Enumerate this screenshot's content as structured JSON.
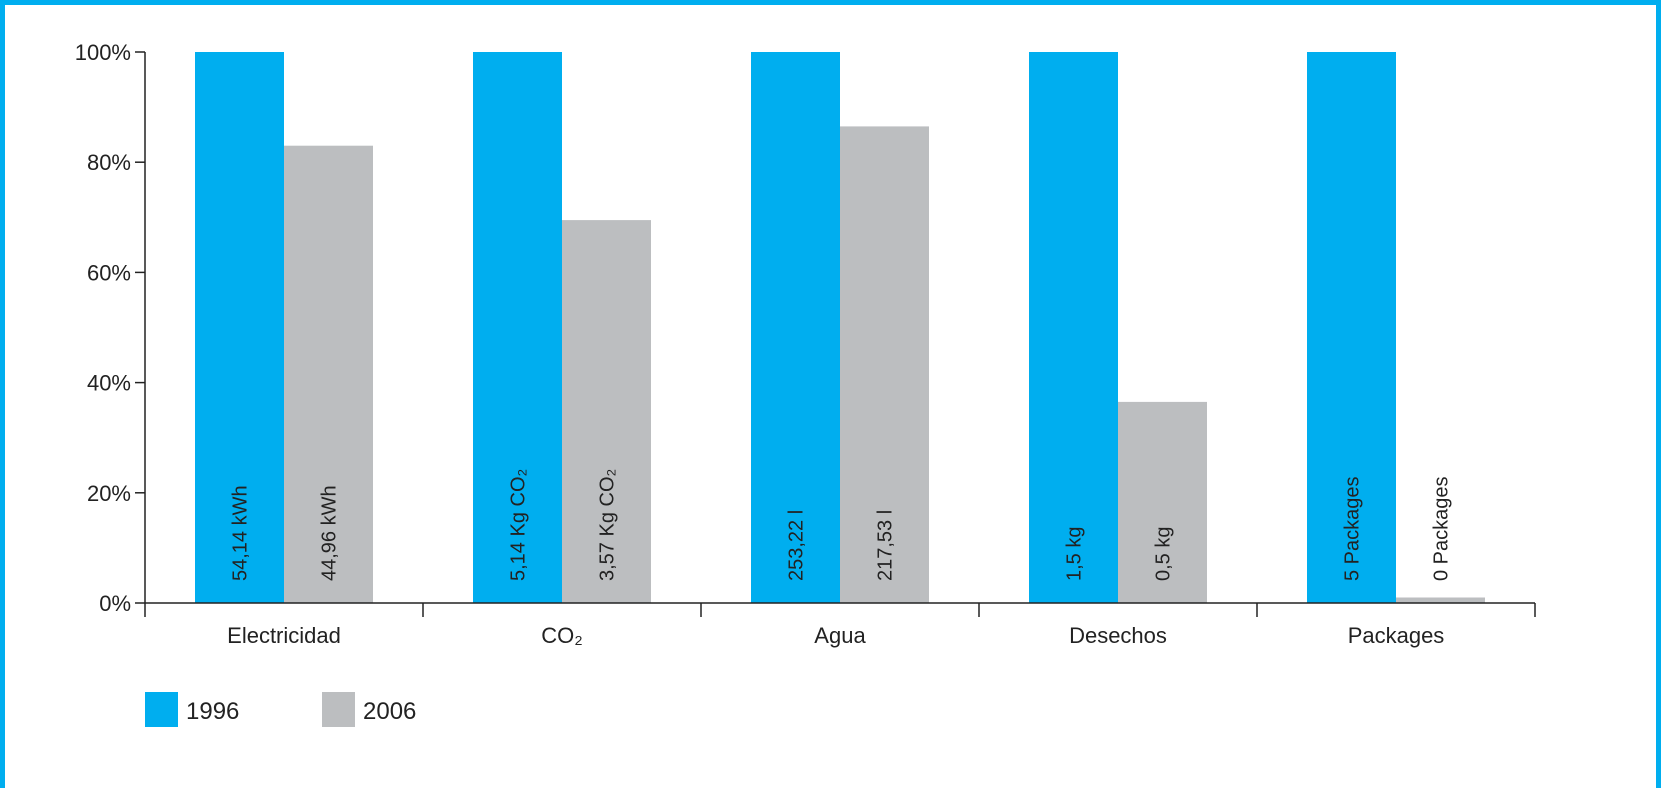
{
  "chart_data": {
    "type": "bar",
    "categories": [
      "Electricidad",
      "CO₂",
      "Agua",
      "Desechos",
      "Packages"
    ],
    "series": [
      {
        "name": "1996",
        "color": "#00aeef",
        "values": [
          100,
          100,
          100,
          100,
          100
        ],
        "labels": [
          "54,14 kWh",
          "5,14 Kg CO₂",
          "253,22 l",
          "1,5 kg",
          "5 Packages"
        ]
      },
      {
        "name": "2006",
        "color": "#bcbec0",
        "values": [
          83,
          69.5,
          86.5,
          36.5,
          1
        ],
        "labels": [
          "44,96 kWh",
          "3,57 Kg CO₂",
          "217,53 l",
          "0,5 kg",
          "0 Packages"
        ]
      }
    ],
    "y_ticks": [
      "0%",
      "20%",
      "40%",
      "60%",
      "80%",
      "100%"
    ],
    "ylim": [
      0,
      100
    ],
    "legend_position": "bottom-left",
    "grid": false
  },
  "frame_color": "#00aeef"
}
